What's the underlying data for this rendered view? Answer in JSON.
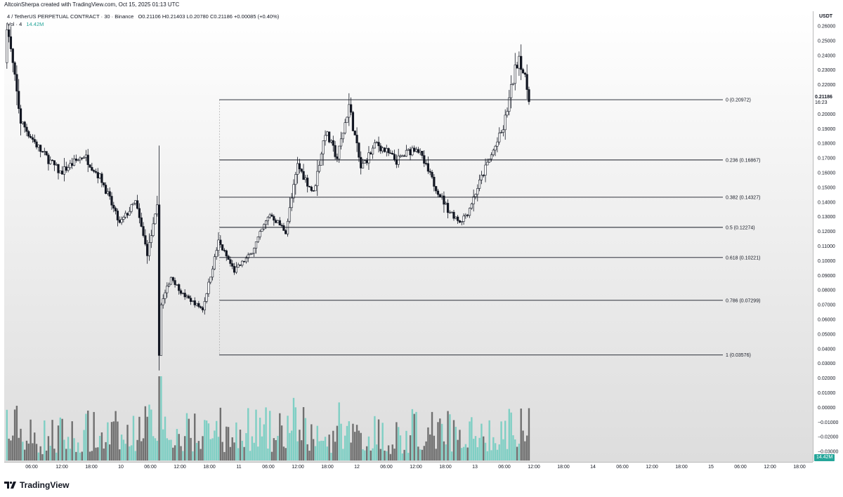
{
  "header": {
    "credit": "AltcoinSherpa created with TradingView.com, Oct 15, 2025 01:13 UTC"
  },
  "legend": {
    "symbol": "4 / TetherUS PERPETUAL CONTRACT · 30 · Binance",
    "open": "O0.21106",
    "high": "H0.21403",
    "low": "L0.20780",
    "close": "C0.21186",
    "change": "+0.00085 (+0.40%)",
    "volume_label": "Vol · 4",
    "volume_value": "14.42M"
  },
  "price_axis": {
    "unit": "USDT",
    "current_price": "0.21186",
    "countdown": "16:23",
    "ticks": [
      "0.26000",
      "0.25000",
      "0.24000",
      "0.23000",
      "0.22000",
      "0.20000",
      "0.19000",
      "0.18000",
      "0.17000",
      "0.16000",
      "0.15000",
      "0.14000",
      "0.13000",
      "0.12000",
      "0.11000",
      "0.10000",
      "0.09000",
      "0.08000",
      "0.07000",
      "0.06000",
      "0.05000",
      "0.04000",
      "0.03000",
      "0.02000",
      "0.01000",
      "0.00000",
      "−0.01000",
      "−0.02000",
      "−0.03000"
    ]
  },
  "volume_tag": "14.42M",
  "time_axis": {
    "labels": [
      "06:00",
      "12:00",
      "18:00",
      "10",
      "06:00",
      "12:00",
      "18:00",
      "11",
      "06:00",
      "12:00",
      "18:00",
      "12",
      "06:00",
      "12:00",
      "18:00",
      "13",
      "06:00",
      "12:00",
      "18:00",
      "14",
      "06:00",
      "12:00",
      "18:00",
      "15",
      "06:00",
      "12:00",
      "18:00"
    ]
  },
  "fib_levels": [
    {
      "label": "0 (0.20972)",
      "price": 0.20972
    },
    {
      "label": "0.236 (0.16867)",
      "price": 0.16867
    },
    {
      "label": "0.382 (0.14327)",
      "price": 0.14327
    },
    {
      "label": "0.5 (0.12274)",
      "price": 0.12274
    },
    {
      "label": "0.618 (0.10221)",
      "price": 0.10221
    },
    {
      "label": "0.786 (0.07299)",
      "price": 0.07299
    },
    {
      "label": "1 (0.03576)",
      "price": 0.03576
    }
  ],
  "brand": {
    "name": "TradingView"
  },
  "colors": {
    "up": "#ffffff",
    "down": "#131722",
    "vol_up": "#7fcfc4",
    "vol_down": "#707070",
    "fib_line": "#131722",
    "accent": "#26a69a"
  },
  "chart_data": {
    "type": "candlestick",
    "interval": "30",
    "ylim": [
      -0.03,
      0.262
    ],
    "x_range": [
      "10 00:00",
      "15 21:00"
    ],
    "key_points": [
      {
        "t": "10 00:00",
        "price": 0.235
      },
      {
        "t": "10 00:30",
        "price": 0.262
      },
      {
        "t": "10 04:00",
        "price": 0.195
      },
      {
        "t": "10 09:00",
        "price": 0.175
      },
      {
        "t": "10 14:00",
        "price": 0.16
      },
      {
        "t": "10 20:00",
        "price": 0.172
      },
      {
        "t": "11 00:30",
        "price": 0.155
      },
      {
        "t": "11 05:00",
        "price": 0.125
      },
      {
        "t": "11 09:00",
        "price": 0.14
      },
      {
        "t": "11 12:00",
        "price": 0.105
      },
      {
        "t": "11 14:30",
        "price": 0.136
      },
      {
        "t": "11 15:00",
        "price": 0.036
      },
      {
        "t": "11 15:30",
        "price": 0.07
      },
      {
        "t": "11 18:00",
        "price": 0.089
      },
      {
        "t": "11 21:00",
        "price": 0.077
      },
      {
        "t": "12 02:00",
        "price": 0.067
      },
      {
        "t": "12 06:00",
        "price": 0.113
      },
      {
        "t": "12 10:00",
        "price": 0.093
      },
      {
        "t": "12 14:00",
        "price": 0.104
      },
      {
        "t": "12 19:00",
        "price": 0.132
      },
      {
        "t": "12 23:00",
        "price": 0.12
      },
      {
        "t": "13 02:00",
        "price": 0.165
      },
      {
        "t": "13 06:00",
        "price": 0.146
      },
      {
        "t": "13 09:00",
        "price": 0.188
      },
      {
        "t": "13 12:00",
        "price": 0.17
      },
      {
        "t": "13 15:00",
        "price": 0.206
      },
      {
        "t": "13 18:00",
        "price": 0.163
      },
      {
        "t": "13 22:00",
        "price": 0.18
      },
      {
        "t": "14 03:00",
        "price": 0.168
      },
      {
        "t": "14 08:00",
        "price": 0.178
      },
      {
        "t": "14 12:00",
        "price": 0.155
      },
      {
        "t": "14 16:00",
        "price": 0.135
      },
      {
        "t": "14 19:00",
        "price": 0.127
      },
      {
        "t": "14 21:00",
        "price": 0.133
      },
      {
        "t": "15 01:00",
        "price": 0.16
      },
      {
        "t": "15 06:00",
        "price": 0.19
      },
      {
        "t": "15 09:00",
        "price": 0.23
      },
      {
        "t": "15 10:00",
        "price": 0.24
      },
      {
        "t": "15 12:30",
        "price": 0.21186
      }
    ]
  }
}
